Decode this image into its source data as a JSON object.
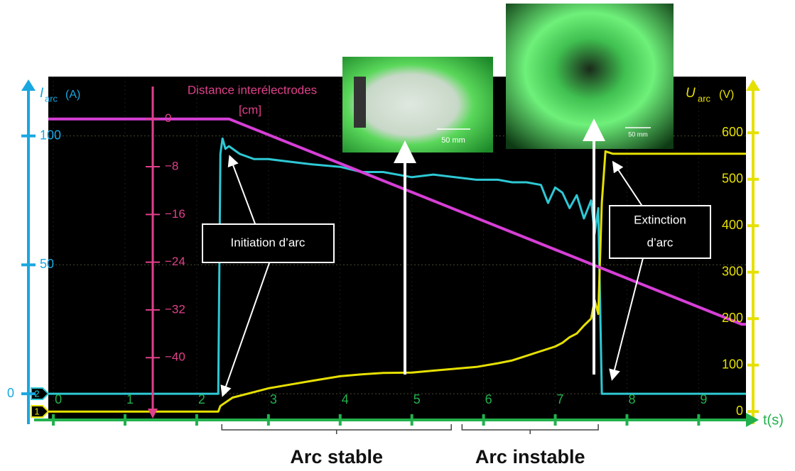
{
  "chart_data": {
    "type": "line",
    "y_label": "I",
    "y_label_sub": "arc",
    "y_label_unit": "(A)",
    "y2_label": "U",
    "y2_label_sub": "arc",
    "y2_label_unit": "(V)",
    "y3_label": "Distance interélectrodes",
    "y3_label_unit": "[cm]",
    "x_label": "t(s)",
    "xlim": [
      -0.07,
      9.66
    ],
    "xticks": [
      0,
      1,
      2,
      3,
      4,
      5,
      6,
      7,
      8,
      9
    ],
    "ylim": [
      -9.6,
      123
    ],
    "yticks": [
      0,
      50,
      100
    ],
    "y2lim": [
      -15,
      721
    ],
    "y2ticks": [
      0,
      100,
      200,
      300,
      400,
      500,
      600
    ],
    "y3lim": [
      -50.2,
      7.1
    ],
    "y3ticks": [
      0,
      {
        "value": -8,
        "label": "−8"
      },
      {
        "value": -16,
        "label": "−16"
      },
      {
        "value": -24,
        "label": "−24"
      },
      {
        "value": -32,
        "label": "−32"
      },
      {
        "value": -40,
        "label": "−40"
      }
    ],
    "series": [
      {
        "color": "#2ec8d4",
        "axis": "y",
        "x": [
          -0.07,
          2.3,
          2.33,
          2.36,
          2.4,
          2.45,
          2.6,
          2.8,
          3.0,
          3.3,
          3.6,
          4.0,
          4.3,
          4.6,
          5.0,
          5.3,
          5.6,
          5.9,
          6.2,
          6.4,
          6.6,
          6.8,
          6.9,
          7.0,
          7.1,
          7.2,
          7.3,
          7.4,
          7.5,
          7.55,
          7.6,
          7.65,
          7.7,
          9.66
        ],
        "values": [
          0,
          0,
          93,
          99,
          95,
          96,
          93,
          91,
          91,
          90,
          89,
          88,
          86,
          86,
          84,
          85,
          84,
          83,
          83,
          82,
          82,
          81,
          74,
          80,
          78,
          72,
          77,
          68,
          75,
          62,
          72,
          0,
          0,
          0
        ]
      },
      {
        "color": "#e6e000",
        "axis": "y2",
        "x": [
          -0.07,
          2.3,
          2.33,
          2.5,
          2.8,
          3.0,
          3.3,
          3.6,
          4.0,
          4.3,
          4.6,
          5.0,
          5.3,
          5.6,
          5.9,
          6.2,
          6.4,
          6.6,
          6.8,
          7.0,
          7.1,
          7.2,
          7.3,
          7.4,
          7.5,
          7.55,
          7.6,
          7.65,
          7.7,
          7.8,
          9.66
        ],
        "values": [
          0,
          0,
          12,
          30,
          42,
          50,
          58,
          66,
          76,
          80,
          83,
          84,
          88,
          92,
          96,
          104,
          110,
          120,
          130,
          140,
          148,
          160,
          168,
          185,
          200,
          240,
          210,
          450,
          560,
          555,
          555
        ]
      },
      {
        "color": "#d63fd6",
        "axis": "y3",
        "x": [
          -0.07,
          2.45,
          9.6,
          9.66
        ],
        "values": [
          0,
          0,
          -34.4,
          -34.4
        ]
      }
    ],
    "channel_markers": [
      "2",
      "1"
    ],
    "annotations": [
      "Initiation d’arc",
      "Extinction",
      "d’arc"
    ],
    "spans": [
      {
        "label": "Arc stable",
        "x": [
          2.35,
          5.55
        ]
      },
      {
        "label": "Arc instable",
        "x": [
          5.7,
          7.6
        ]
      }
    ],
    "photo_scales": [
      "50 mm",
      "50 mm"
    ]
  }
}
